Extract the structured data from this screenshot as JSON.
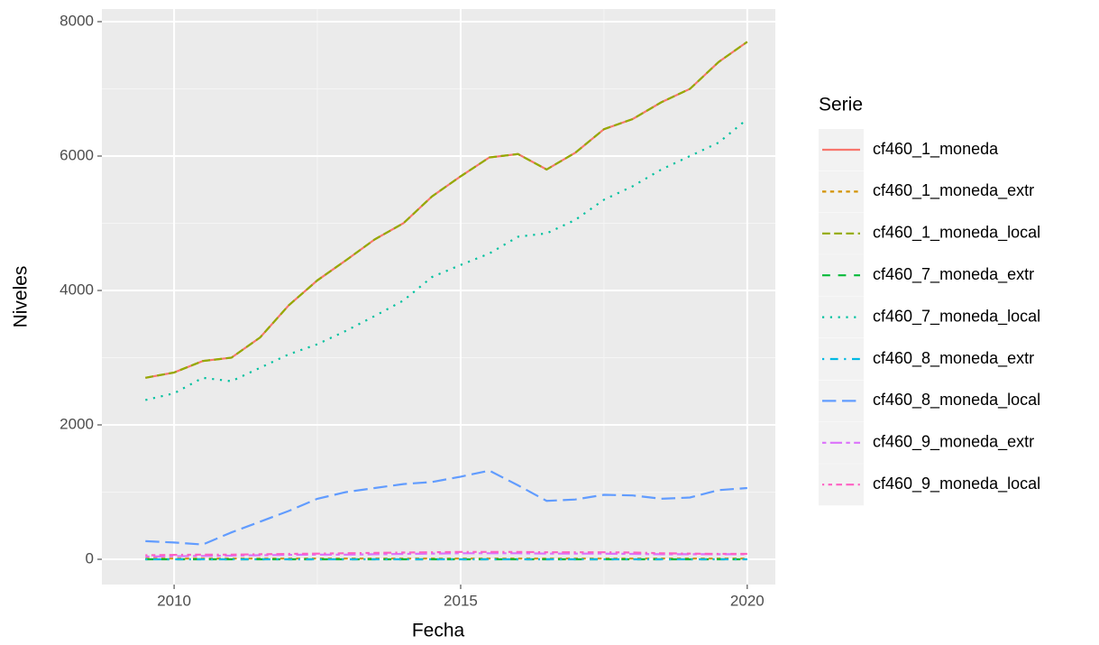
{
  "chart_data": {
    "type": "line",
    "x_label": "Fecha",
    "y_label": "Niveles",
    "legend_title": "Serie",
    "legend_position": "right",
    "x": [
      2009.5,
      2010.0,
      2010.5,
      2011.0,
      2011.5,
      2012.0,
      2012.5,
      2013.0,
      2013.5,
      2014.0,
      2014.5,
      2015.0,
      2015.5,
      2016.0,
      2016.5,
      2017.0,
      2017.5,
      2018.0,
      2018.5,
      2019.0,
      2019.5,
      2020.0
    ],
    "xlim": [
      2008.74,
      2020.49
    ],
    "xticks": [
      2010,
      2015,
      2020
    ],
    "ylim": [
      -376,
      8188
    ],
    "yticks": [
      0,
      2000,
      4000,
      6000,
      8000
    ],
    "grid": true,
    "series": [
      {
        "name": "cf460_1_moneda",
        "color": "#F8766D",
        "linetype": "solid",
        "values": [
          2700,
          2780,
          2950,
          3000,
          3300,
          3780,
          4150,
          4450,
          4760,
          5000,
          5400,
          5700,
          5980,
          6030,
          5800,
          6050,
          6400,
          6550,
          6800,
          7000,
          7400,
          7700
        ]
      },
      {
        "name": "cf460_1_moneda_extr",
        "color": "#D39200",
        "linetype": "22",
        "values": [
          10,
          10,
          10,
          10,
          10,
          10,
          10,
          10,
          10,
          10,
          10,
          10,
          10,
          10,
          10,
          10,
          10,
          10,
          10,
          10,
          10,
          10
        ]
      },
      {
        "name": "cf460_1_moneda_local",
        "color": "#93AA00",
        "linetype": "42",
        "values": [
          2700,
          2780,
          2950,
          3000,
          3300,
          3780,
          4150,
          4450,
          4760,
          5000,
          5400,
          5700,
          5980,
          6030,
          5800,
          6050,
          6400,
          6550,
          6800,
          7000,
          7400,
          7700
        ]
      },
      {
        "name": "cf460_7_moneda_extr",
        "color": "#00BA38",
        "linetype": "44",
        "values": [
          0,
          0,
          0,
          0,
          0,
          0,
          0,
          0,
          0,
          0,
          0,
          0,
          0,
          0,
          0,
          0,
          0,
          0,
          0,
          0,
          0,
          0
        ]
      },
      {
        "name": "cf460_7_moneda_local",
        "color": "#00C19F",
        "linetype": "13",
        "values": [
          2370,
          2470,
          2700,
          2650,
          2850,
          3050,
          3200,
          3400,
          3620,
          3850,
          4200,
          4380,
          4550,
          4800,
          4850,
          5050,
          5350,
          5550,
          5800,
          6000,
          6200,
          6550
        ]
      },
      {
        "name": "cf460_8_moneda_extr",
        "color": "#00B9E3",
        "linetype": "1343",
        "values": [
          0,
          0,
          0,
          0,
          0,
          0,
          0,
          0,
          0,
          0,
          0,
          0,
          0,
          0,
          0,
          0,
          0,
          0,
          0,
          0,
          0,
          0
        ]
      },
      {
        "name": "cf460_8_moneda_local",
        "color": "#619CFF",
        "linetype": "73",
        "values": [
          270,
          250,
          220,
          400,
          560,
          720,
          900,
          1000,
          1060,
          1120,
          1150,
          1230,
          1320,
          1100,
          870,
          890,
          960,
          950,
          900,
          920,
          1030,
          1060
        ]
      },
      {
        "name": "cf460_9_moneda_extr",
        "color": "#DB72FB",
        "linetype": "2262",
        "values": [
          40,
          45,
          50,
          55,
          60,
          65,
          70,
          70,
          75,
          80,
          85,
          90,
          90,
          90,
          85,
          85,
          85,
          80,
          75,
          75,
          75,
          75
        ]
      },
      {
        "name": "cf460_9_moneda_local",
        "color": "#FF61C3",
        "linetype": "12223242",
        "values": [
          60,
          65,
          70,
          70,
          75,
          80,
          85,
          90,
          95,
          100,
          105,
          110,
          110,
          110,
          105,
          105,
          105,
          100,
          90,
          85,
          80,
          80
        ]
      }
    ]
  }
}
